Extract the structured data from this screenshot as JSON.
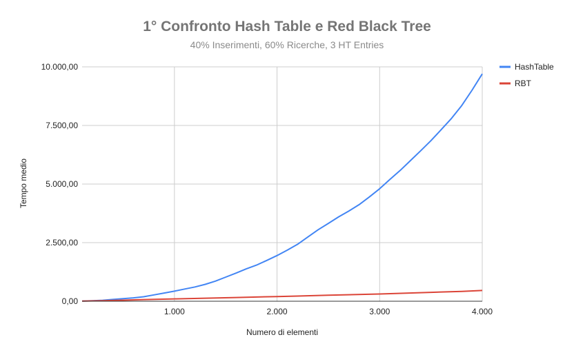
{
  "chart_data": {
    "type": "line",
    "title": "1° Confronto Hash Table e Red Black Tree",
    "subtitle": "40% Inserimenti, 60% Ricerche, 3 HT Entries",
    "xlabel": "Numero di elementi",
    "ylabel": "Tempo medio",
    "xlim": [
      100,
      4000
    ],
    "ylim": [
      0,
      10000
    ],
    "x_ticks": [
      1000,
      2000,
      3000,
      4000
    ],
    "x_tick_labels": [
      "1.000",
      "2.000",
      "3.000",
      "4.000"
    ],
    "y_ticks": [
      0,
      2500,
      5000,
      7500,
      10000
    ],
    "y_tick_labels": [
      "0,00",
      "2.500,00",
      "5.000,00",
      "7.500,00",
      "10.000,00"
    ],
    "grid": true,
    "legend_position": "right",
    "series": [
      {
        "name": "HashTable",
        "color": "#4285f4",
        "points": [
          [
            100,
            10
          ],
          [
            200,
            20
          ],
          [
            300,
            40
          ],
          [
            400,
            75
          ],
          [
            500,
            110
          ],
          [
            600,
            145
          ],
          [
            700,
            190
          ],
          [
            800,
            270
          ],
          [
            900,
            350
          ],
          [
            1000,
            430
          ],
          [
            1100,
            520
          ],
          [
            1200,
            610
          ],
          [
            1300,
            720
          ],
          [
            1400,
            860
          ],
          [
            1500,
            1030
          ],
          [
            1600,
            1200
          ],
          [
            1700,
            1380
          ],
          [
            1800,
            1540
          ],
          [
            1900,
            1740
          ],
          [
            2000,
            1950
          ],
          [
            2100,
            2180
          ],
          [
            2200,
            2430
          ],
          [
            2300,
            2740
          ],
          [
            2400,
            3050
          ],
          [
            2500,
            3320
          ],
          [
            2600,
            3600
          ],
          [
            2700,
            3850
          ],
          [
            2800,
            4120
          ],
          [
            2900,
            4450
          ],
          [
            3000,
            4800
          ],
          [
            3100,
            5200
          ],
          [
            3200,
            5580
          ],
          [
            3300,
            6000
          ],
          [
            3400,
            6420
          ],
          [
            3500,
            6850
          ],
          [
            3600,
            7320
          ],
          [
            3700,
            7800
          ],
          [
            3800,
            8350
          ],
          [
            3900,
            9000
          ],
          [
            4000,
            9700
          ]
        ]
      },
      {
        "name": "RBT",
        "color": "#db4437",
        "points": [
          [
            100,
            5
          ],
          [
            300,
            20
          ],
          [
            500,
            45
          ],
          [
            700,
            70
          ],
          [
            1000,
            100
          ],
          [
            1300,
            130
          ],
          [
            1600,
            160
          ],
          [
            2000,
            200
          ],
          [
            2200,
            220
          ],
          [
            2500,
            260
          ],
          [
            3000,
            310
          ],
          [
            3500,
            380
          ],
          [
            3800,
            420
          ],
          [
            4000,
            460
          ]
        ]
      }
    ]
  }
}
